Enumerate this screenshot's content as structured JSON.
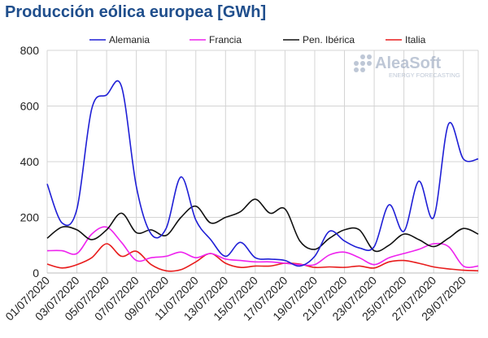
{
  "chart_data": {
    "type": "line",
    "title": "Producción eólica europea [GWh]",
    "xlabel": "",
    "ylabel": "",
    "ylim": [
      0,
      800
    ],
    "yticks": [
      0,
      200,
      400,
      600,
      800
    ],
    "grid": true,
    "legend_position": "top",
    "x": [
      "01/07/2020",
      "02/07/2020",
      "03/07/2020",
      "04/07/2020",
      "05/07/2020",
      "06/07/2020",
      "07/07/2020",
      "08/07/2020",
      "09/07/2020",
      "10/07/2020",
      "11/07/2020",
      "12/07/2020",
      "13/07/2020",
      "14/07/2020",
      "15/07/2020",
      "16/07/2020",
      "17/07/2020",
      "18/07/2020",
      "19/07/2020",
      "20/07/2020",
      "21/07/2020",
      "22/07/2020",
      "23/07/2020",
      "24/07/2020",
      "25/07/2020",
      "26/07/2020",
      "27/07/2020",
      "28/07/2020",
      "29/07/2020",
      "30/07/2020"
    ],
    "x_tick_labels": [
      "01/07/2020",
      "03/07/2020",
      "05/07/2020",
      "07/07/2020",
      "09/07/2020",
      "11/07/2020",
      "13/07/2020",
      "15/07/2020",
      "17/07/2020",
      "19/07/2020",
      "21/07/2020",
      "23/07/2020",
      "25/07/2020",
      "27/07/2020",
      "29/07/2020"
    ],
    "series": [
      {
        "name": "Alemania",
        "color": "#1f1fd6",
        "values": [
          320,
          180,
          230,
          590,
          640,
          670,
          310,
          140,
          160,
          345,
          190,
          120,
          60,
          110,
          55,
          50,
          45,
          25,
          60,
          150,
          115,
          90,
          95,
          245,
          150,
          330,
          200,
          535,
          410,
          410
        ]
      },
      {
        "name": "Francia",
        "color": "#ee22ee",
        "values": [
          80,
          80,
          70,
          140,
          165,
          110,
          45,
          55,
          60,
          75,
          55,
          70,
          50,
          45,
          40,
          40,
          35,
          30,
          30,
          65,
          75,
          55,
          30,
          55,
          70,
          85,
          105,
          95,
          25,
          25
        ]
      },
      {
        "name": "Pen. Ibérica",
        "color": "#111111",
        "values": [
          125,
          165,
          155,
          120,
          155,
          215,
          145,
          155,
          135,
          200,
          240,
          180,
          200,
          220,
          265,
          215,
          230,
          115,
          85,
          125,
          155,
          155,
          80,
          100,
          140,
          120,
          95,
          125,
          160,
          140
        ]
      },
      {
        "name": "Italia",
        "color": "#e81c1c",
        "values": [
          32,
          18,
          30,
          55,
          105,
          60,
          78,
          30,
          8,
          12,
          40,
          70,
          35,
          20,
          25,
          25,
          35,
          32,
          20,
          22,
          20,
          25,
          18,
          40,
          45,
          35,
          22,
          15,
          10,
          8
        ]
      }
    ]
  },
  "watermark": {
    "brand": "AleaSoft",
    "tagline": "ENERGY FORECASTING"
  }
}
